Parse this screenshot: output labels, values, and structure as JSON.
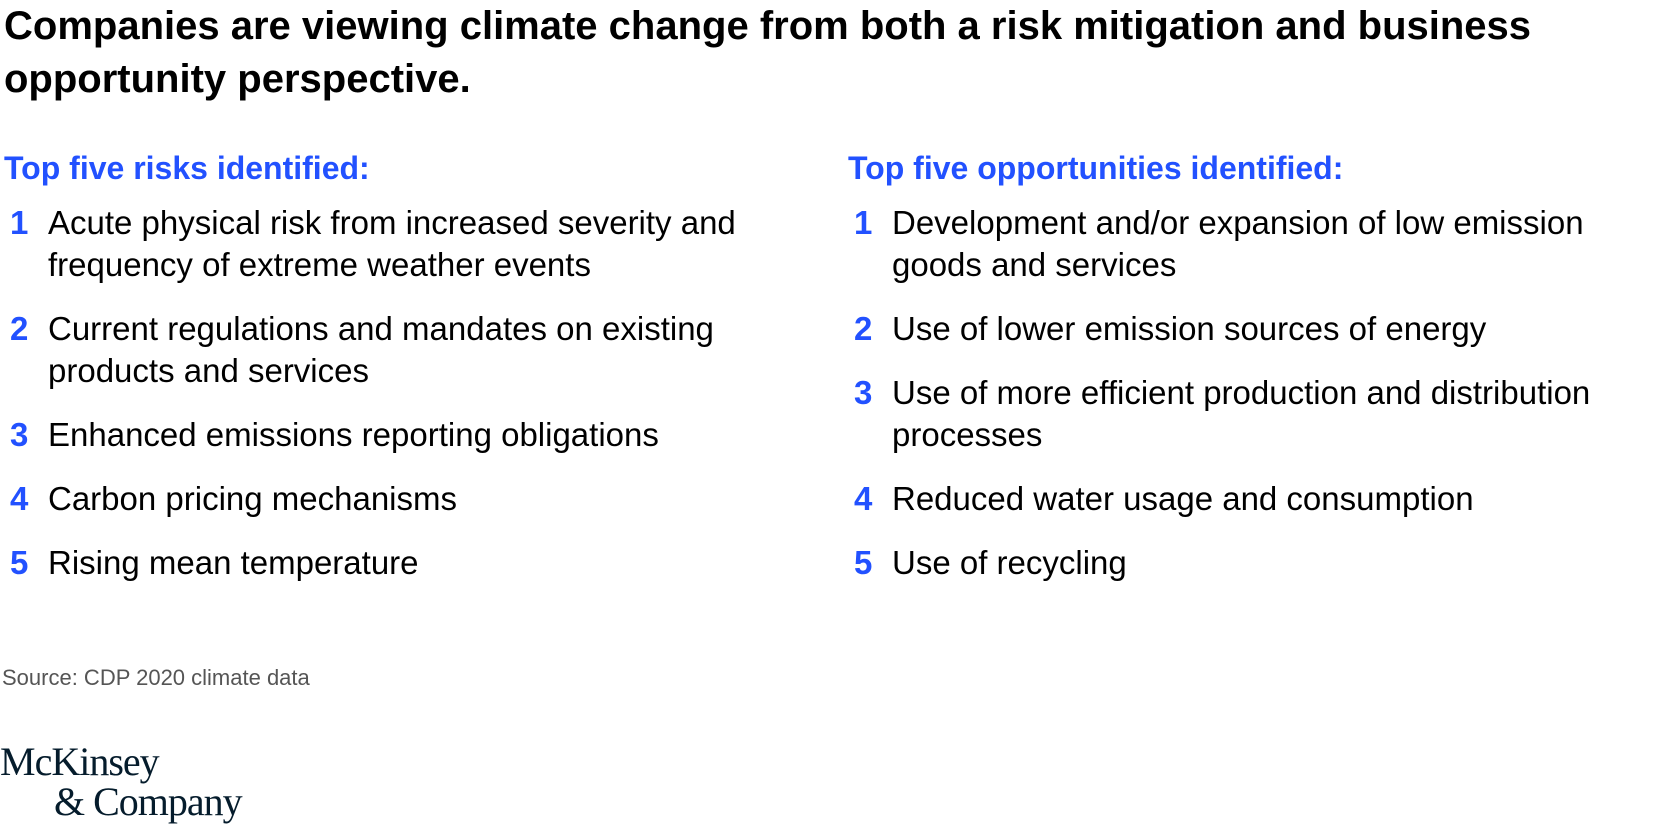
{
  "title": "Companies are viewing climate change from both a risk mitigation and business opportunity perspective.",
  "colors": {
    "accent": "#2251ff",
    "text": "#000000",
    "source_text": "#555555",
    "logo": "#051c2c"
  },
  "risks": {
    "heading": "Top five risks identified:",
    "items": [
      {
        "number": "1",
        "text": "Acute physical risk from increased severity and frequency of extreme weather events"
      },
      {
        "number": "2",
        "text": "Current regulations and mandates on existing products and services"
      },
      {
        "number": "3",
        "text": "Enhanced emissions reporting obligations"
      },
      {
        "number": "4",
        "text": "Carbon pricing mechanisms"
      },
      {
        "number": "5",
        "text": "Rising mean temperature"
      }
    ]
  },
  "opportunities": {
    "heading": "Top five opportunities identified:",
    "items": [
      {
        "number": "1",
        "text": "Development and/or expansion of low emission goods and services"
      },
      {
        "number": "2",
        "text": "Use of lower emission sources of energy"
      },
      {
        "number": "3",
        "text": "Use of more efficient production and distribution processes"
      },
      {
        "number": "4",
        "text": "Reduced water usage and consumption"
      },
      {
        "number": "5",
        "text": "Use of recycling"
      }
    ]
  },
  "source": "Source: CDP 2020 climate data",
  "logo": {
    "line1": "McKinsey",
    "line2": "& Company"
  }
}
